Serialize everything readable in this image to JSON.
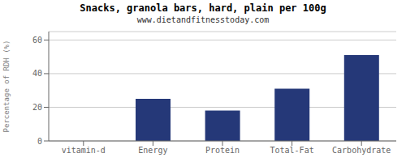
{
  "chart_data": {
    "type": "bar",
    "title": "Snacks, granola bars, hard, plain per 100g",
    "subtitle": "www.dietandfitnesstoday.com",
    "categories": [
      "vitamin-d",
      "Energy",
      "Protein",
      "Total-Fat",
      "Carbohydrate"
    ],
    "values": [
      0,
      25,
      18,
      31,
      51
    ],
    "color": "#253878",
    "ylabel": "Percentage of RDH (%)",
    "ylim": [
      0,
      65
    ],
    "yticks": [
      0,
      20,
      40,
      60
    ],
    "grid": true
  }
}
